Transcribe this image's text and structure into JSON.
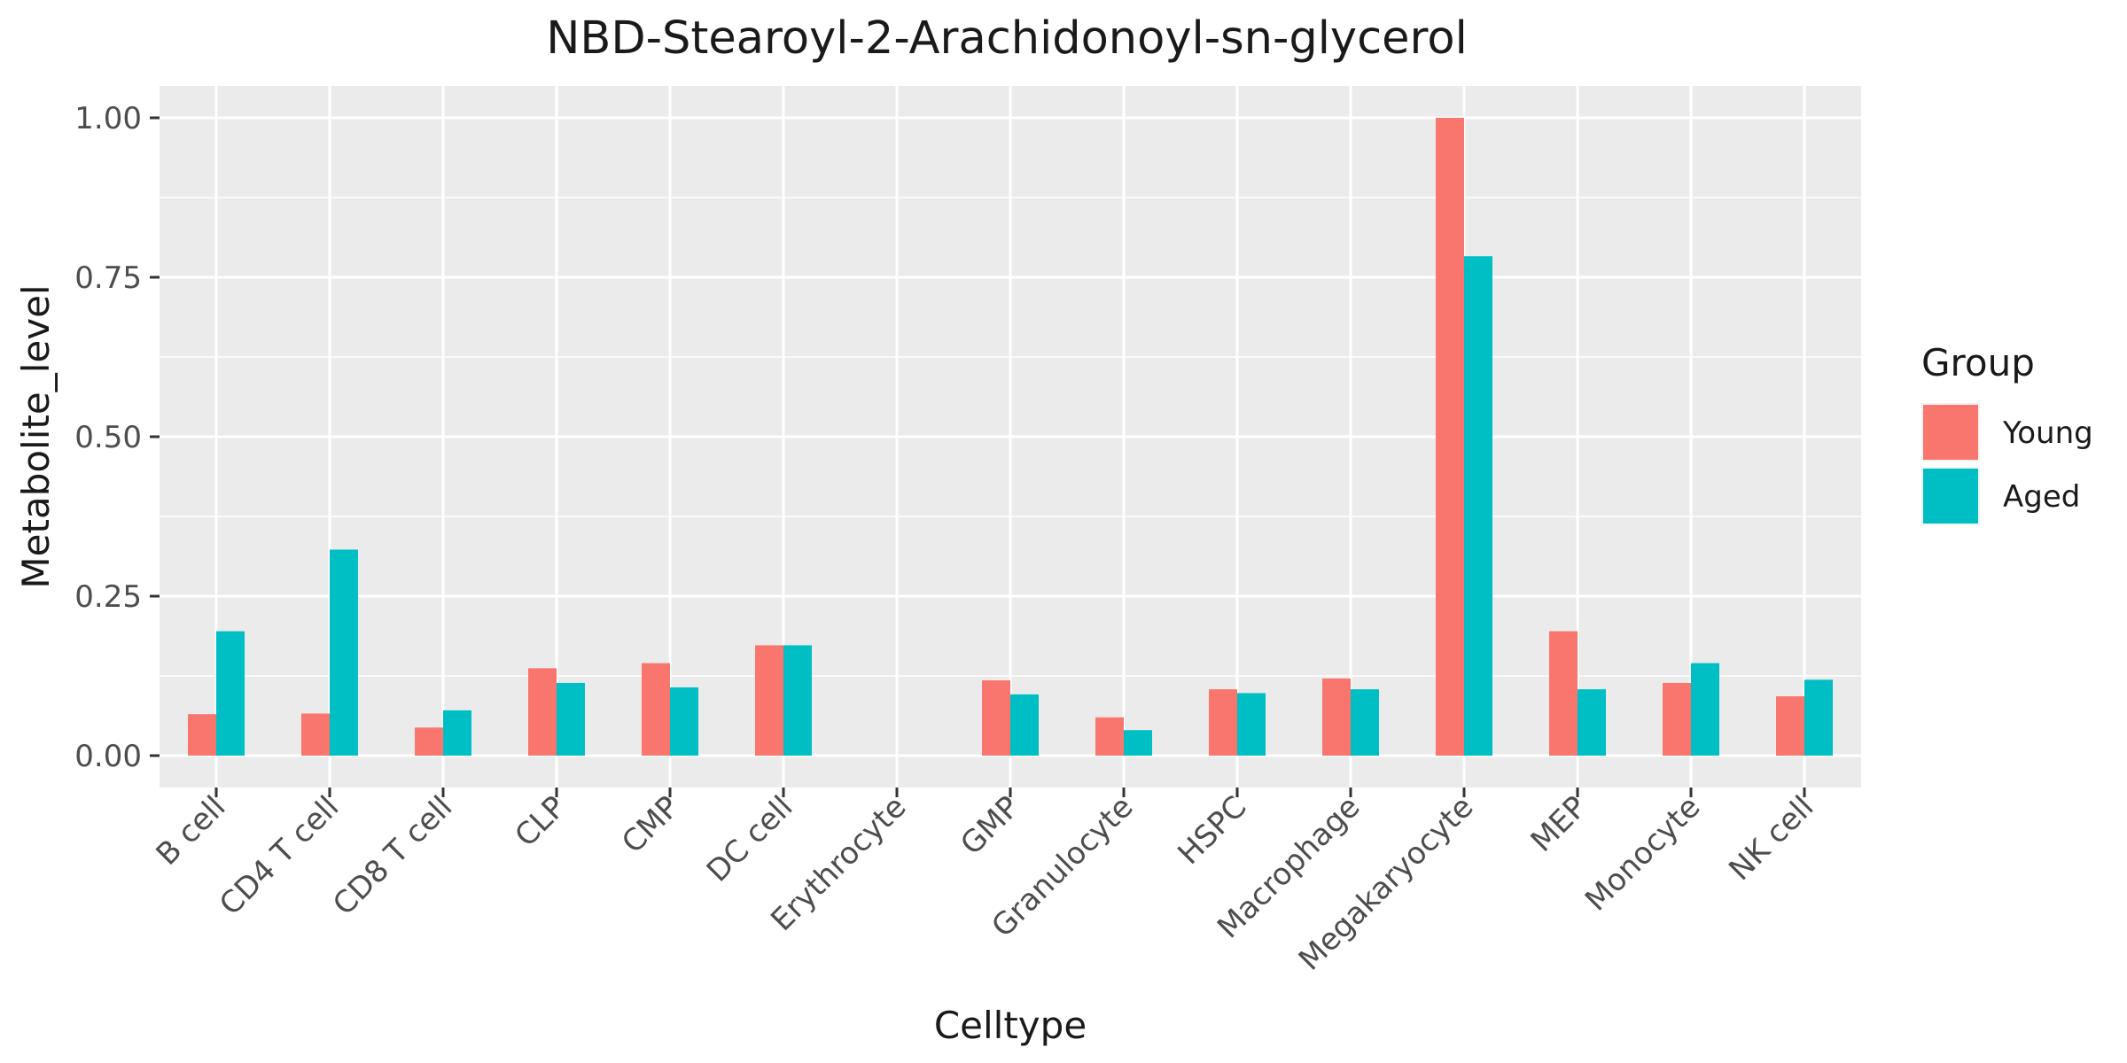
{
  "chart_data": {
    "type": "bar",
    "title": "NBD-Stearoyl-2-Arachidonoyl-sn-glycerol",
    "xlabel": "Celltype",
    "ylabel": "Metabolite_level",
    "ylim": [
      -0.05,
      1.05
    ],
    "yticks": [
      0.0,
      0.25,
      0.5,
      0.75,
      1.0
    ],
    "ytick_labels": [
      "0.00",
      "0.25",
      "0.50",
      "0.75",
      "1.00"
    ],
    "grid": true,
    "legend": {
      "title": "Group",
      "position": "right"
    },
    "categories": [
      "B cell",
      "CD4 T cell",
      "CD8 T cell",
      "CLP",
      "CMP",
      "DC cell",
      "Erythrocyte",
      "GMP",
      "Granulocyte",
      "HSPC",
      "Macrophage",
      "Megakaryocyte",
      "MEP",
      "Monocyte",
      "NK cell"
    ],
    "series": [
      {
        "name": "Young",
        "color": "#F8766D",
        "values": [
          0.065,
          0.066,
          0.044,
          0.137,
          0.145,
          0.173,
          0.0,
          0.118,
          0.06,
          0.104,
          0.121,
          1.0,
          0.195,
          0.114,
          0.093
        ]
      },
      {
        "name": "Aged",
        "color": "#00BFC4",
        "values": [
          0.195,
          0.323,
          0.071,
          0.114,
          0.107,
          0.173,
          0.0,
          0.096,
          0.04,
          0.098,
          0.104,
          0.783,
          0.104,
          0.145,
          0.119
        ]
      }
    ]
  }
}
